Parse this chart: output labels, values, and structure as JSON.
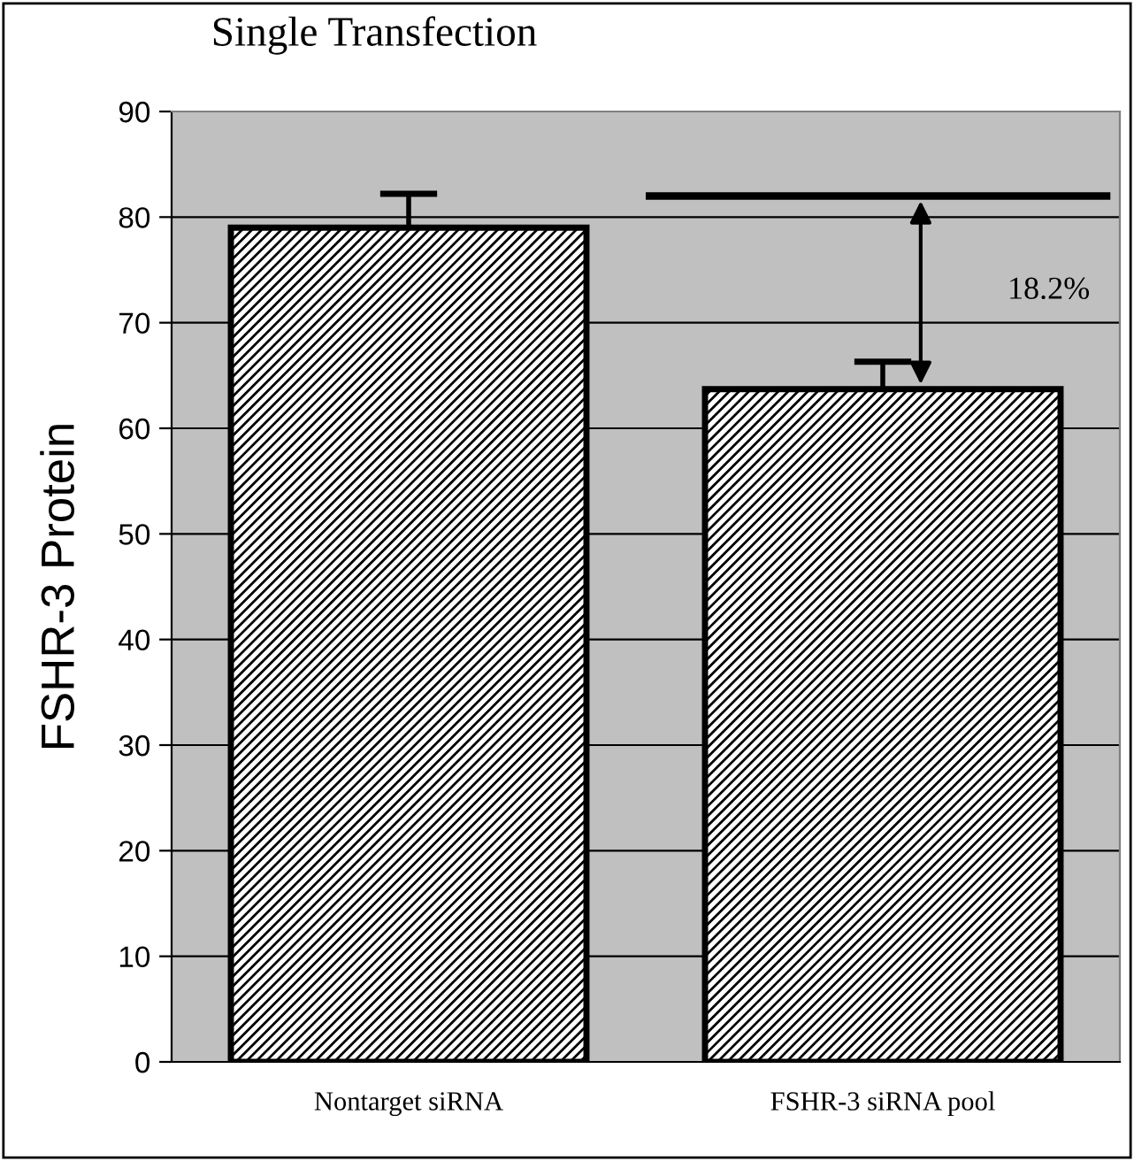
{
  "chart_data": {
    "type": "bar",
    "title": "Single Transfection",
    "ylabel": "FSHR-3 Protein",
    "categories": [
      "Nontarget siRNA",
      "FSHR-3 siRNA pool"
    ],
    "values": [
      79,
      63.7
    ],
    "errors": [
      [
        79,
        82.2
      ],
      [
        63.7,
        66.3
      ]
    ],
    "color": "#000000",
    "ylim": [
      0,
      90
    ],
    "yticks": [
      0,
      10,
      20,
      30,
      40,
      50,
      60,
      70,
      80,
      90
    ],
    "grid": "y",
    "ref_lines": [
      {
        "axis": "y",
        "value": 82,
        "color": "#000000"
      }
    ],
    "annotations": [
      "18.2%"
    ]
  }
}
